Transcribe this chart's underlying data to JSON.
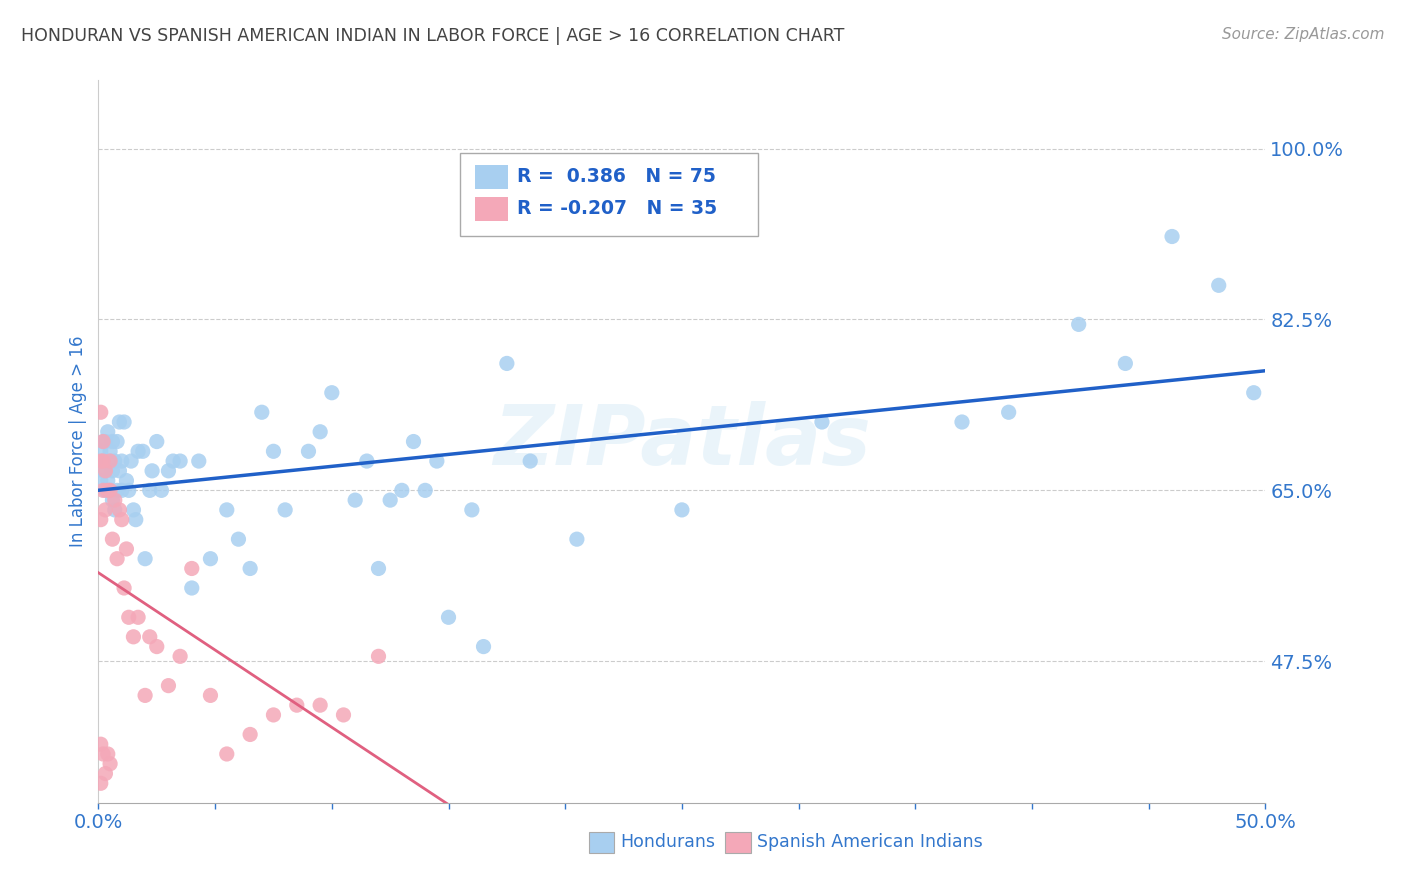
{
  "title": "HONDURAN VS SPANISH AMERICAN INDIAN IN LABOR FORCE | AGE > 16 CORRELATION CHART",
  "source": "Source: ZipAtlas.com",
  "ylabel": "In Labor Force | Age > 16",
  "xlim": [
    0.0,
    0.5
  ],
  "ylim": [
    0.33,
    1.07
  ],
  "yticks": [
    0.475,
    0.65,
    0.825,
    1.0
  ],
  "ytick_labels": [
    "47.5%",
    "65.0%",
    "82.5%",
    "100.0%"
  ],
  "xticks": [
    0.0,
    0.05,
    0.1,
    0.15,
    0.2,
    0.25,
    0.3,
    0.35,
    0.4,
    0.45,
    0.5
  ],
  "xtick_labels": [
    "0.0%",
    "",
    "",
    "",
    "",
    "",
    "",
    "",
    "",
    "",
    "50.0%"
  ],
  "legend_blue_r": "0.386",
  "legend_blue_n": "75",
  "legend_pink_r": "-0.207",
  "legend_pink_n": "35",
  "blue_color": "#a8cff0",
  "pink_color": "#f4a8b8",
  "blue_line_color": "#2060c8",
  "pink_line_color": "#e06080",
  "watermark": "ZIPatlas",
  "title_color": "#444444",
  "tick_label_color": "#3377cc",
  "blue_x": [
    0.001,
    0.001,
    0.002,
    0.002,
    0.002,
    0.003,
    0.003,
    0.003,
    0.004,
    0.004,
    0.005,
    0.005,
    0.005,
    0.006,
    0.006,
    0.006,
    0.007,
    0.007,
    0.008,
    0.008,
    0.009,
    0.009,
    0.01,
    0.01,
    0.011,
    0.012,
    0.013,
    0.014,
    0.015,
    0.016,
    0.017,
    0.019,
    0.02,
    0.022,
    0.023,
    0.025,
    0.027,
    0.03,
    0.032,
    0.035,
    0.04,
    0.043,
    0.048,
    0.055,
    0.06,
    0.065,
    0.07,
    0.075,
    0.08,
    0.09,
    0.095,
    0.1,
    0.11,
    0.115,
    0.12,
    0.125,
    0.13,
    0.135,
    0.14,
    0.145,
    0.15,
    0.16,
    0.165,
    0.175,
    0.185,
    0.205,
    0.25,
    0.31,
    0.37,
    0.39,
    0.42,
    0.44,
    0.46,
    0.48,
    0.495
  ],
  "blue_y": [
    0.69,
    0.66,
    0.67,
    0.7,
    0.68,
    0.7,
    0.67,
    0.65,
    0.66,
    0.71,
    0.68,
    0.65,
    0.69,
    0.64,
    0.67,
    0.7,
    0.63,
    0.68,
    0.65,
    0.7,
    0.72,
    0.67,
    0.68,
    0.65,
    0.72,
    0.66,
    0.65,
    0.68,
    0.63,
    0.62,
    0.69,
    0.69,
    0.58,
    0.65,
    0.67,
    0.7,
    0.65,
    0.67,
    0.68,
    0.68,
    0.55,
    0.68,
    0.58,
    0.63,
    0.6,
    0.57,
    0.73,
    0.69,
    0.63,
    0.69,
    0.71,
    0.75,
    0.64,
    0.68,
    0.57,
    0.64,
    0.65,
    0.7,
    0.65,
    0.68,
    0.52,
    0.63,
    0.49,
    0.78,
    0.68,
    0.6,
    0.63,
    0.72,
    0.72,
    0.73,
    0.82,
    0.78,
    0.91,
    0.86,
    0.75
  ],
  "pink_x": [
    0.001,
    0.001,
    0.001,
    0.002,
    0.002,
    0.002,
    0.003,
    0.003,
    0.004,
    0.005,
    0.005,
    0.006,
    0.007,
    0.008,
    0.009,
    0.01,
    0.011,
    0.012,
    0.013,
    0.015,
    0.017,
    0.02,
    0.022,
    0.025,
    0.03,
    0.035,
    0.04,
    0.048,
    0.055,
    0.065,
    0.075,
    0.085,
    0.095,
    0.105,
    0.12
  ],
  "pink_y": [
    0.73,
    0.68,
    0.62,
    0.7,
    0.65,
    0.68,
    0.67,
    0.63,
    0.65,
    0.65,
    0.68,
    0.6,
    0.64,
    0.58,
    0.63,
    0.62,
    0.55,
    0.59,
    0.52,
    0.5,
    0.52,
    0.44,
    0.5,
    0.49,
    0.45,
    0.48,
    0.57,
    0.44,
    0.38,
    0.4,
    0.42,
    0.43,
    0.43,
    0.42,
    0.48
  ],
  "pink_outlier_x": [
    0.001,
    0.001,
    0.002,
    0.003,
    0.004,
    0.005
  ],
  "pink_outlier_y": [
    0.39,
    0.35,
    0.38,
    0.36,
    0.38,
    0.37
  ]
}
